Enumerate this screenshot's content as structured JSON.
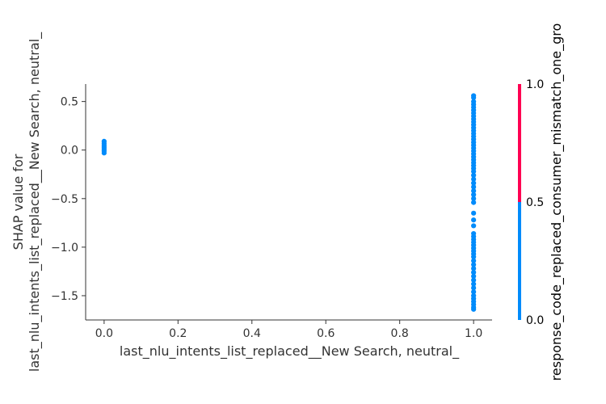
{
  "chart_data": {
    "type": "scatter",
    "title": "",
    "xlabel": "last_nlu_intents_list_replaced__New Search, neutral_",
    "ylabel_line1": "SHAP value for",
    "ylabel_line2": "last_nlu_intents_list_replaced__New Search, neutral_",
    "xlim": [
      -0.05,
      1.05
    ],
    "ylim": [
      -1.75,
      0.68
    ],
    "xticks": [
      "0.0",
      "0.2",
      "0.4",
      "0.6",
      "0.8",
      "1.0"
    ],
    "yticks": [
      "0.5",
      "0.0",
      "−0.5",
      "−1.0",
      "−1.5"
    ],
    "grid": false,
    "series": [
      {
        "color": "#008bfb",
        "points": [
          [
            0.0,
            0.09
          ],
          [
            0.0,
            0.07
          ],
          [
            0.0,
            0.05
          ],
          [
            0.0,
            0.03
          ],
          [
            0.0,
            0.01
          ],
          [
            0.0,
            -0.01
          ],
          [
            0.0,
            -0.03
          ],
          [
            1.0,
            0.56
          ],
          [
            1.0,
            0.54
          ],
          [
            1.0,
            0.5
          ],
          [
            1.0,
            0.47
          ],
          [
            1.0,
            0.44
          ],
          [
            1.0,
            0.41
          ],
          [
            1.0,
            0.38
          ],
          [
            1.0,
            0.35
          ],
          [
            1.0,
            0.32
          ],
          [
            1.0,
            0.29
          ],
          [
            1.0,
            0.26
          ],
          [
            1.0,
            0.23
          ],
          [
            1.0,
            0.2
          ],
          [
            1.0,
            0.17
          ],
          [
            1.0,
            0.14
          ],
          [
            1.0,
            0.11
          ],
          [
            1.0,
            0.08
          ],
          [
            1.0,
            0.05
          ],
          [
            1.0,
            0.02
          ],
          [
            1.0,
            -0.01
          ],
          [
            1.0,
            -0.04
          ],
          [
            1.0,
            -0.07
          ],
          [
            1.0,
            -0.1
          ],
          [
            1.0,
            -0.13
          ],
          [
            1.0,
            -0.16
          ],
          [
            1.0,
            -0.19
          ],
          [
            1.0,
            -0.22
          ],
          [
            1.0,
            -0.26
          ],
          [
            1.0,
            -0.3
          ],
          [
            1.0,
            -0.34
          ],
          [
            1.0,
            -0.38
          ],
          [
            1.0,
            -0.42
          ],
          [
            1.0,
            -0.46
          ],
          [
            1.0,
            -0.5
          ],
          [
            1.0,
            -0.54
          ],
          [
            1.0,
            -0.65
          ],
          [
            1.0,
            -0.72
          ],
          [
            1.0,
            -0.78
          ],
          [
            1.0,
            -0.86
          ],
          [
            1.0,
            -0.89
          ],
          [
            1.0,
            -0.92
          ],
          [
            1.0,
            -0.95
          ],
          [
            1.0,
            -0.98
          ],
          [
            1.0,
            -1.01
          ],
          [
            1.0,
            -1.04
          ],
          [
            1.0,
            -1.07
          ],
          [
            1.0,
            -1.1
          ],
          [
            1.0,
            -1.14
          ],
          [
            1.0,
            -1.18
          ],
          [
            1.0,
            -1.22
          ],
          [
            1.0,
            -1.26
          ],
          [
            1.0,
            -1.3
          ],
          [
            1.0,
            -1.34
          ],
          [
            1.0,
            -1.38
          ],
          [
            1.0,
            -1.42
          ],
          [
            1.0,
            -1.46
          ],
          [
            1.0,
            -1.5
          ],
          [
            1.0,
            -1.53
          ],
          [
            1.0,
            -1.56
          ],
          [
            1.0,
            -1.59
          ],
          [
            1.0,
            -1.62
          ],
          [
            1.0,
            -1.64
          ]
        ]
      }
    ],
    "colorbar": {
      "label": "response_code_replaced_consumer_mismatch_one_gro",
      "ticks": [
        "1.0",
        "0.5",
        "0.0"
      ],
      "segments": [
        {
          "from": 0.5,
          "to": 1.0,
          "color": "#ff0052"
        },
        {
          "from": 0.0,
          "to": 0.5,
          "color": "#008bfb"
        }
      ]
    }
  }
}
